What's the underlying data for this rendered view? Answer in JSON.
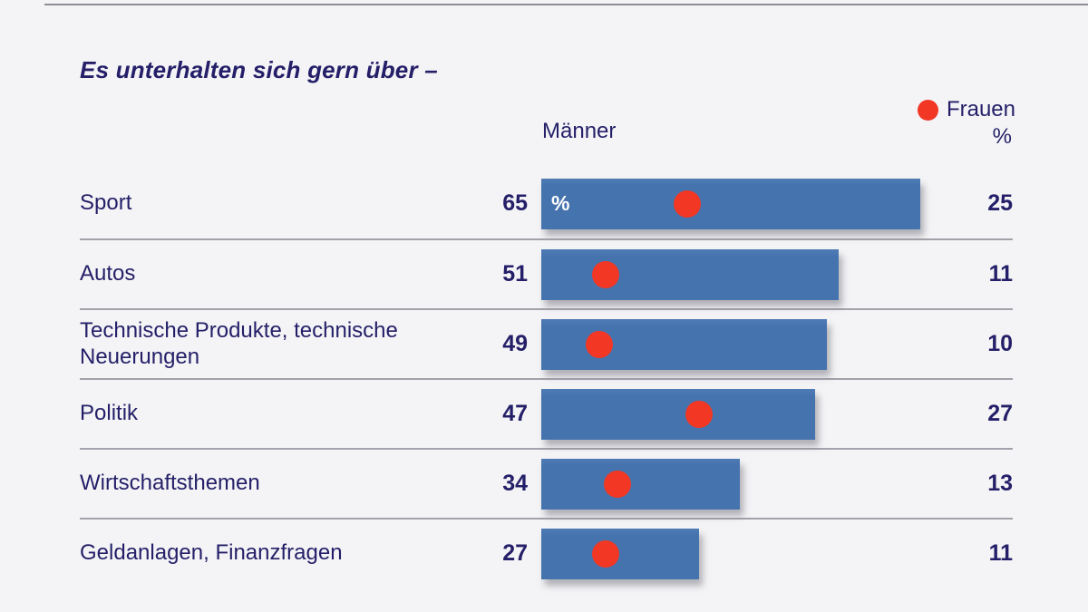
{
  "title": "Es unterhalten sich gern über –",
  "header": {
    "men_label": "Männer",
    "women_label": "Frauen",
    "unit_label": "%",
    "bar_unit_label": "%"
  },
  "colors": {
    "background": "#f4f4f6",
    "bar_blue": "#4573ae",
    "dot_red": "#f23724",
    "text_navy": "#241f68",
    "divider_gray": "#a2a2aa",
    "top_line_gray": "#8d8d95"
  },
  "chart_data": {
    "type": "bar",
    "title": "Es unterhalten sich gern über –",
    "unit": "%",
    "categories": [
      "Sport",
      "Autos",
      "Technische Produkte, technische Neuerungen",
      "Politik",
      "Wirtschaftsthemen",
      "Geldanlagen, Finanzfragen"
    ],
    "series": [
      {
        "name": "Männer",
        "marker": "bar",
        "values": [
          65,
          51,
          49,
          47,
          34,
          27
        ]
      },
      {
        "name": "Frauen",
        "marker": "dot",
        "values": [
          25,
          11,
          10,
          27,
          13,
          11
        ]
      }
    ],
    "xlim": [
      0,
      67
    ],
    "orientation": "horizontal",
    "legend_position": "top-right",
    "grid": false
  },
  "rows": [
    {
      "label": "Sport",
      "men": 65,
      "women": 25,
      "show_unit_in_bar": true
    },
    {
      "label": "Autos",
      "men": 51,
      "women": 11,
      "show_unit_in_bar": false
    },
    {
      "label": "Technische Produkte, technische Neuerungen",
      "men": 49,
      "women": 10,
      "show_unit_in_bar": false
    },
    {
      "label": "Politik",
      "men": 47,
      "women": 27,
      "show_unit_in_bar": false
    },
    {
      "label": "Wirtschaftsthemen",
      "men": 34,
      "women": 13,
      "show_unit_in_bar": false
    },
    {
      "label": "Geldanlagen, Finanzfragen",
      "men": 27,
      "women": 11,
      "show_unit_in_bar": false
    }
  ]
}
